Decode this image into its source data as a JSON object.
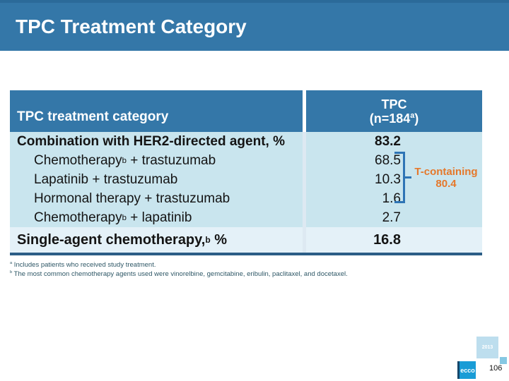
{
  "slide": {
    "title": "TPC Treatment Category"
  },
  "table": {
    "header": {
      "col1": "TPC treatment category",
      "col2_line1": "TPC",
      "col2_line2_pre": "(n=184",
      "col2_line2_sup": "a",
      "col2_line2_post": ")"
    },
    "rows": [
      {
        "label_pre": "Combination with HER2-directed agent, %",
        "label_sup": "",
        "label_post": "",
        "value": "83.2"
      },
      {
        "label_pre": "Chemotherapy",
        "label_sup": "b",
        "label_post": " + trastuzumab",
        "value": "68.5"
      },
      {
        "label_pre": "Lapatinib + trastuzumab",
        "label_sup": "",
        "label_post": "",
        "value": "10.3"
      },
      {
        "label_pre": "Hormonal therapy + trastuzumab",
        "label_sup": "",
        "label_post": "",
        "value": "1.6"
      },
      {
        "label_pre": "Chemotherapy",
        "label_sup": "b",
        "label_post": " + lapatinib",
        "value": "2.7"
      }
    ],
    "single_row": {
      "label_pre": "Single-agent chemotherapy,",
      "label_sup": "b",
      "label_post": " %",
      "value": "16.8"
    }
  },
  "annotation": {
    "label": "T-containing",
    "value": "80.4"
  },
  "footnotes": [
    {
      "marker": "a",
      "text": " Includes patients who received study treatment."
    },
    {
      "marker": "b",
      "text": " The most common chemotherapy agents used were vinorelbine, gemcitabine, eribulin, paclitaxel, and docetaxel."
    }
  ],
  "footer": {
    "year_label": "2013",
    "logo_text": "ecco",
    "page_number": "106"
  },
  "colors": {
    "header_blue": "#3477a8",
    "body_cyan": "#c9e5ee",
    "light_row": "#e4f1f8",
    "bottom_border": "#2b5d86",
    "accent_orange": "#e5782b",
    "bracket_blue": "#2e74b5",
    "footnote_teal": "#2e5766",
    "logo_blue": "#199cd6"
  },
  "chart_data": {
    "type": "table",
    "title": "TPC Treatment Category",
    "columns": [
      "TPC treatment category",
      "TPC (n=184a)"
    ],
    "rows": [
      [
        "Combination with HER2-directed agent, %",
        83.2
      ],
      [
        "Chemotherapy(b) + trastuzumab",
        68.5
      ],
      [
        "Lapatinib + trastuzumab",
        10.3
      ],
      [
        "Hormonal therapy + trastuzumab",
        1.6
      ],
      [
        "Chemotherapy(b) + lapatinib",
        2.7
      ],
      [
        "Single-agent chemotherapy,(b) %",
        16.8
      ]
    ],
    "annotations": [
      {
        "text": "T-containing",
        "value": 80.4,
        "applies_to_rows": [
          1,
          2,
          3
        ]
      }
    ]
  }
}
